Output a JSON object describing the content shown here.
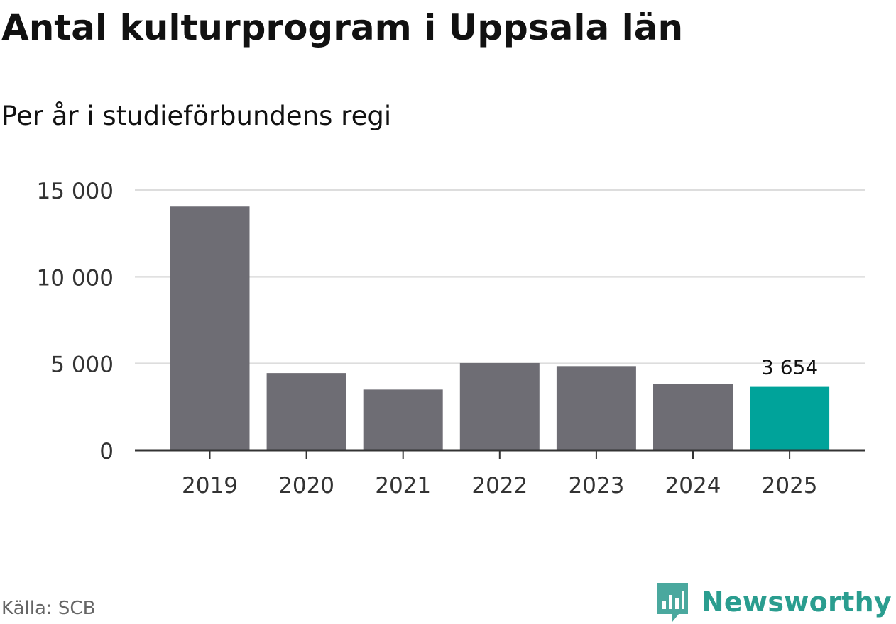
{
  "header": {
    "title": "Antal kulturprogram i Uppsala län",
    "subtitle": "Per år i studieförbundens regi"
  },
  "footer": {
    "source": "Källa: SCB",
    "brand_name": "Newsworthy",
    "brand_icon": "newsworthy-logo-icon"
  },
  "colors": {
    "bar": "#6e6d74",
    "highlight": "#00a39a",
    "grid": "#dddddd",
    "axis": "#333333",
    "brand": "#2a9d8f"
  },
  "chart_data": {
    "type": "bar",
    "title": "Antal kulturprogram i Uppsala län",
    "subtitle": "Per år i studieförbundens regi",
    "xlabel": "",
    "ylabel": "",
    "categories": [
      "2019",
      "2020",
      "2021",
      "2022",
      "2023",
      "2024",
      "2025"
    ],
    "values": [
      14050,
      4450,
      3500,
      5030,
      4850,
      3830,
      3654
    ],
    "highlight_index": 6,
    "annotations": [
      {
        "category": "2025",
        "text": "3 654"
      }
    ],
    "ylim": [
      0,
      15000
    ],
    "yticks": [
      0,
      5000,
      10000,
      15000
    ],
    "ytick_labels": [
      "0",
      "5 000",
      "10 000",
      "15 000"
    ],
    "grid": true,
    "legend": "none"
  }
}
